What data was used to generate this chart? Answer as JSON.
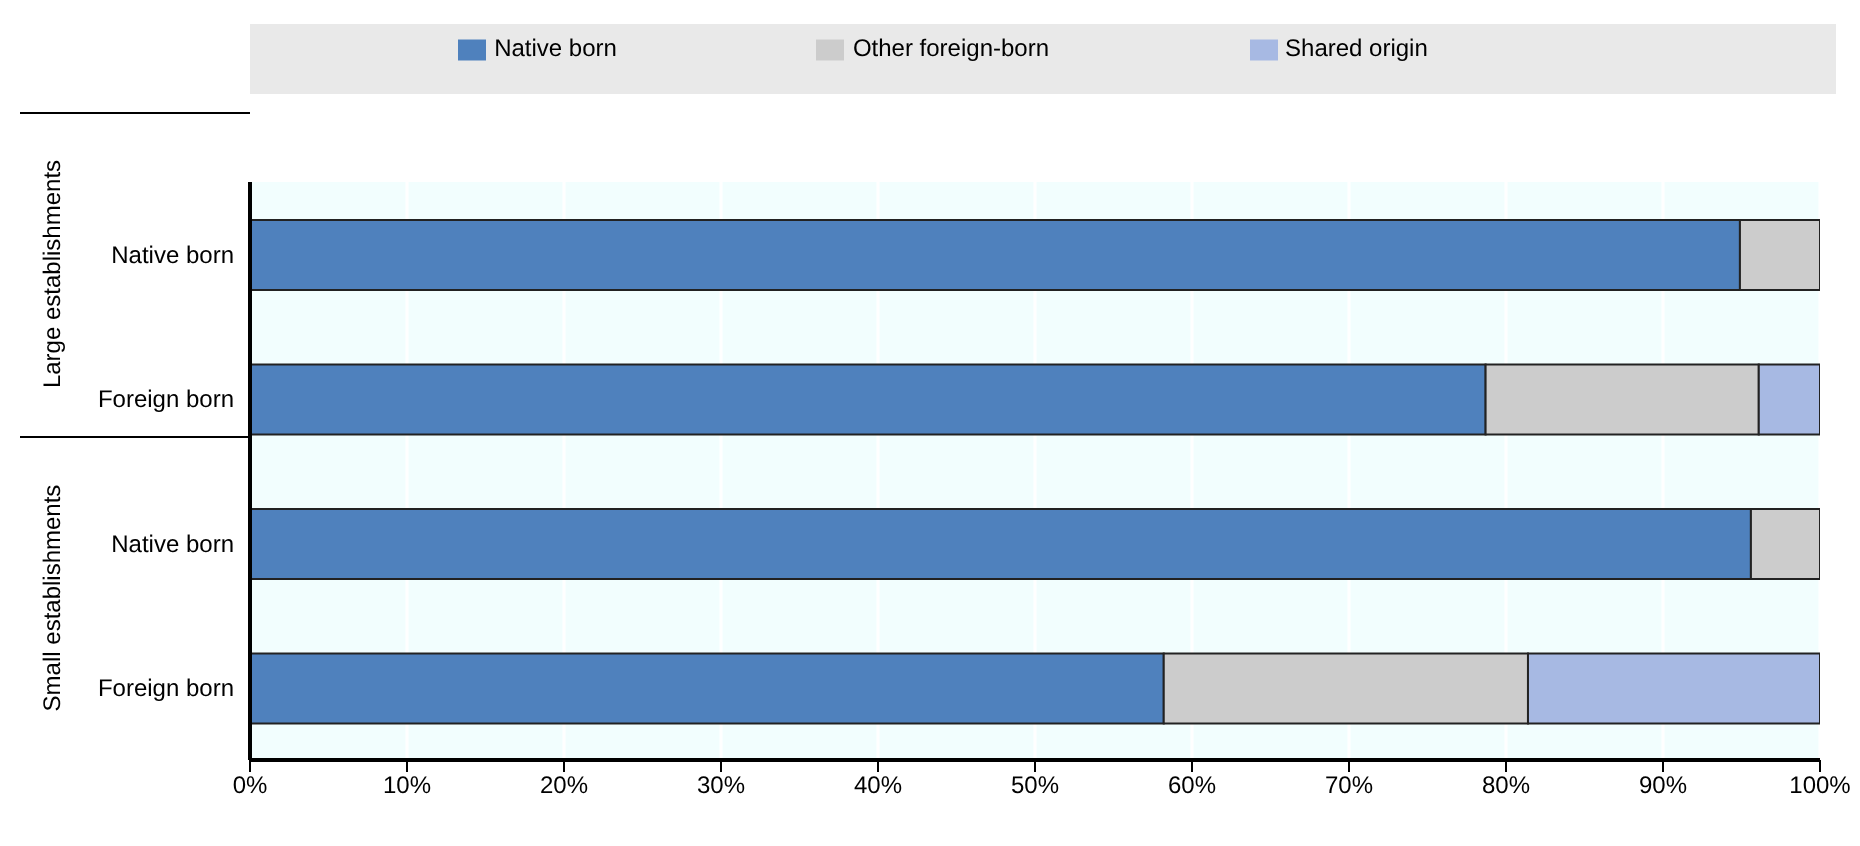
{
  "chart_data": {
    "type": "bar",
    "orientation": "horizontal",
    "stacked": true,
    "categories": [
      "Native born",
      "Foreign born",
      "Native born",
      "Foreign born"
    ],
    "series": [
      {
        "name": "Native born",
        "color": "#4f81bd",
        "values": [
          94.9,
          78.7,
          95.6,
          58.2
        ]
      },
      {
        "name": "Other foreign-born",
        "color": "#cccccc",
        "values": [
          5.1,
          17.4,
          4.4,
          23.2
        ]
      },
      {
        "name": "Shared origin",
        "color": "#a7b9e3",
        "values": [
          0,
          3.9,
          0,
          18.6
        ]
      }
    ],
    "xlim": [
      0,
      100
    ],
    "xticks": [
      {
        "value": 0,
        "label": "0%"
      },
      {
        "value": 10,
        "label": "10%"
      },
      {
        "value": 20,
        "label": "20%"
      },
      {
        "value": 30,
        "label": "30%"
      },
      {
        "value": 40,
        "label": "40%"
      },
      {
        "value": 50,
        "label": "50%"
      },
      {
        "value": 60,
        "label": "60%"
      },
      {
        "value": 70,
        "label": "70%"
      },
      {
        "value": 80,
        "label": "80%"
      },
      {
        "value": 90,
        "label": "90%"
      },
      {
        "value": 100,
        "label": "100%"
      }
    ],
    "annotations": [
      "Large establishments",
      "Small establishments"
    ],
    "grid": "x",
    "legend": "top"
  }
}
